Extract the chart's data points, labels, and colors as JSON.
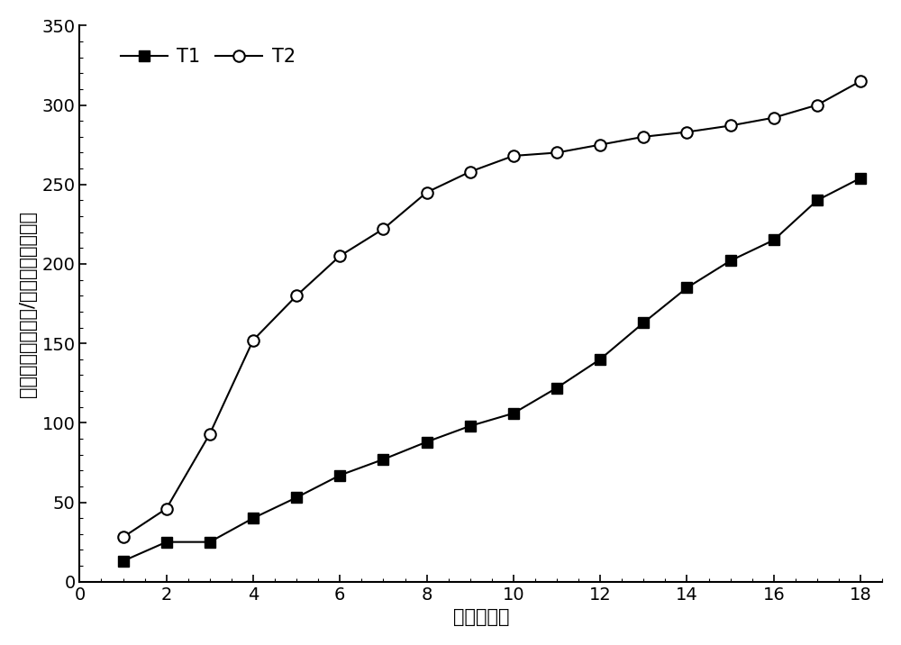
{
  "T1_x": [
    1,
    2,
    3,
    4,
    5,
    6,
    7,
    8,
    9,
    10,
    11,
    12,
    13,
    14,
    15,
    16,
    17,
    18
  ],
  "T1_y": [
    13,
    25,
    25,
    40,
    53,
    67,
    77,
    88,
    98,
    106,
    122,
    140,
    163,
    185,
    202,
    215,
    240,
    254
  ],
  "T2_x": [
    1,
    2,
    3,
    4,
    5,
    6,
    7,
    8,
    9,
    10,
    11,
    12,
    13,
    14,
    15,
    16,
    17,
    18
  ],
  "T2_y": [
    28,
    46,
    93,
    152,
    180,
    205,
    222,
    245,
    258,
    268,
    270,
    275,
    280,
    283,
    287,
    292,
    300,
    315
  ],
  "xlabel": "时间（天）",
  "ylabel": "累积甲烷产量（升/千克挥发性固体）",
  "xlim": [
    0,
    18.5
  ],
  "ylim": [
    0,
    350
  ],
  "yticks": [
    0,
    50,
    100,
    150,
    200,
    250,
    300,
    350
  ],
  "xticks": [
    0,
    2,
    4,
    6,
    8,
    10,
    12,
    14,
    16,
    18
  ],
  "legend_T1": "T1",
  "legend_T2": "T2",
  "line_color": "#000000",
  "bg_color": "#ffffff",
  "label_fontsize": 15,
  "tick_fontsize": 14,
  "legend_fontsize": 15
}
